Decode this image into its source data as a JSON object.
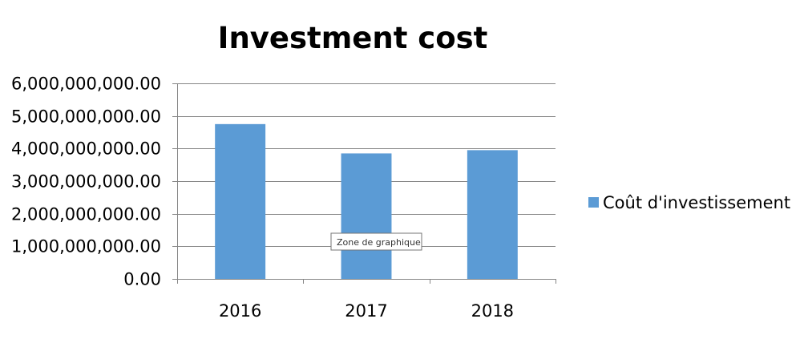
{
  "tooltip": {
    "text": "Zone de graphique"
  },
  "chart_data": {
    "type": "bar",
    "title": "Investment cost",
    "xlabel": "",
    "ylabel": "",
    "categories": [
      "2016",
      "2017",
      "2018"
    ],
    "series": [
      {
        "name": "Coût d'investissement",
        "values": [
          4750000000,
          3850000000,
          3950000000
        ],
        "color": "#5B9BD5"
      }
    ],
    "ylim": [
      0,
      6000000000
    ],
    "yticks": [
      0,
      1000000000,
      2000000000,
      3000000000,
      4000000000,
      5000000000,
      6000000000
    ],
    "ytick_labels": [
      "0.00",
      "1,000,000,000.00",
      "2,000,000,000.00",
      "3,000,000,000.00",
      "4,000,000,000.00",
      "5,000,000,000.00",
      "6,000,000,000.00"
    ],
    "grid": true,
    "legend_position": "right"
  }
}
